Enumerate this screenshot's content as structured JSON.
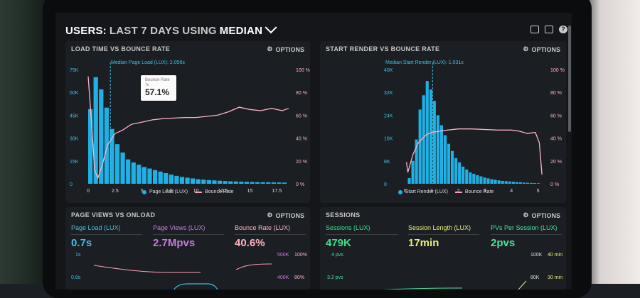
{
  "header": {
    "prefix": "USERS:",
    "range": "LAST 7 DAYS",
    "using": "USING",
    "metric": "MEDIAN",
    "icons": [
      "monitor-icon",
      "chart-icon",
      "help-icon"
    ],
    "help_glyph": "?"
  },
  "panels": {
    "load_vs_bounce": {
      "title": "LOAD TIME VS BOUNCE RATE",
      "options_label": "OPTIONS",
      "median_label": "Median Page Load (LUX): 2.056s",
      "tooltip": {
        "title": "Bounce Rate",
        "sub": "7s",
        "value": "57.1%"
      },
      "legend": [
        "Page Load (LUX)",
        "Bounce Rate"
      ]
    },
    "start_vs_bounce": {
      "title": "START RENDER VS BOUNCE RATE",
      "options_label": "OPTIONS",
      "median_label": "Median Start Render (LUX): 1.031s",
      "legend": [
        "Start Render (LUX)",
        "Bounce Rate"
      ]
    },
    "pageviews_onload": {
      "title": "PAGE VIEWS VS ONLOAD",
      "options_label": "OPTIONS",
      "metrics": [
        {
          "label": "Page Load (LUX)",
          "value": "0.7s",
          "color": "#3ec1e6"
        },
        {
          "label": "Page Views (LUX)",
          "value": "2.7Mpvs",
          "color": "#c77be0"
        },
        {
          "label": "Bounce Rate (LUX)",
          "value": "40.6%",
          "color": "#ffb3c4"
        }
      ],
      "ylabels_left": [
        "1s",
        "0.8s"
      ],
      "ylabels_mid": [
        "500K",
        "400K"
      ],
      "ylabels_right": [
        "100%",
        "80%"
      ]
    },
    "sessions": {
      "title": "SESSIONS",
      "options_label": "OPTIONS",
      "metrics": [
        {
          "label": "Sessions (LUX)",
          "value": "479K",
          "color": "#3de08a"
        },
        {
          "label": "Session Length (LUX)",
          "value": "17min",
          "color": "#e9f07a"
        },
        {
          "label": "PVs Per Session (LUX)",
          "value": "2pvs",
          "color": "#44e6a0"
        }
      ],
      "ylabels_left": [
        "4 pvs",
        "3.2 pvs"
      ],
      "ylabels_mid": [
        "100K",
        "80K"
      ],
      "ylabels_right": [
        "40 min",
        "30 min"
      ]
    }
  },
  "chart_data": [
    {
      "type": "bar",
      "title": "LOAD TIME VS BOUNCE RATE",
      "x_ticks": [
        "0",
        "2.5",
        "5",
        "7.5",
        "10",
        "12.5",
        "15",
        "17.5"
      ],
      "y_left_ticks": [
        "0",
        "15K",
        "30K",
        "45K",
        "60K",
        "75K"
      ],
      "y_right_ticks": [
        "0 %",
        "20 %",
        "40 %",
        "60 %",
        "80 %",
        "100 %"
      ],
      "ylim_left": [
        0,
        75000
      ],
      "ylim_right": [
        0,
        100
      ],
      "xlim": [
        0,
        18.6
      ],
      "series": [
        {
          "name": "Page Load (LUX)",
          "type": "bar",
          "x_start": 0,
          "step": 0.5,
          "values": [
            49000,
            70000,
            62000,
            50000,
            36000,
            26000,
            20500,
            16000,
            14000,
            12500,
            11000,
            10000,
            9000,
            8000,
            7000,
            6000,
            5200,
            4500,
            4000,
            3500,
            3000,
            2700,
            2400,
            2200,
            2000,
            1800,
            1600,
            1500,
            1400,
            1300,
            1200,
            1100,
            1000,
            950,
            900,
            850,
            800
          ]
        },
        {
          "name": "Bounce Rate",
          "type": "line",
          "x": [
            0,
            0.3,
            0.6,
            0.9,
            1.3,
            1.8,
            2.5,
            3.2,
            4,
            5,
            6,
            7,
            8,
            9,
            10,
            11,
            12,
            13,
            14,
            15,
            16,
            17,
            18,
            18.6
          ],
          "values": [
            94,
            55,
            12,
            5,
            16,
            34,
            44,
            47,
            52,
            54,
            56,
            57.1,
            57.5,
            58,
            58,
            59,
            60,
            63,
            67,
            65,
            64,
            66,
            64,
            66
          ]
        }
      ],
      "median_x": 2.056
    },
    {
      "type": "bar",
      "title": "START RENDER VS BOUNCE RATE",
      "x_ticks": [
        "0",
        "1",
        "2",
        "3",
        "4",
        "5"
      ],
      "y_left_ticks": [
        "0",
        "8K",
        "16K",
        "24K",
        "32K",
        "40K"
      ],
      "y_right_ticks": [
        "0 %",
        "20 %",
        "40 %",
        "60 %",
        "80 %",
        "100 %"
      ],
      "ylim_left": [
        0,
        40000
      ],
      "ylim_right": [
        0,
        100
      ],
      "xlim": [
        -0.1,
        5.2
      ],
      "series": [
        {
          "name": "Start Render (LUX)",
          "type": "bar",
          "x_start": 0.1,
          "step": 0.135,
          "values": [
            2000,
            8000,
            15500,
            26000,
            31000,
            36000,
            33000,
            29000,
            24000,
            20500,
            17000,
            14000,
            11500,
            9000,
            7500,
            6000,
            5000,
            4000,
            3500,
            3000,
            2600,
            2200,
            1900,
            1600,
            1400,
            1200,
            1000,
            900,
            800,
            700,
            600,
            500,
            400,
            350,
            300,
            250,
            200
          ]
        },
        {
          "name": "Bounce Rate",
          "type": "line",
          "x": [
            0.05,
            0.1,
            0.3,
            0.5,
            0.8,
            1.0,
            1.3,
            1.6,
            2.0,
            2.5,
            3.0,
            3.5,
            4.0,
            4.3,
            4.6,
            4.9,
            5.05,
            5.15
          ],
          "values": [
            19,
            10,
            26,
            36,
            43,
            45,
            46,
            47,
            48,
            48,
            47.5,
            47,
            47,
            46,
            44,
            45,
            36,
            8
          ]
        }
      ],
      "median_x": 1.031
    }
  ]
}
